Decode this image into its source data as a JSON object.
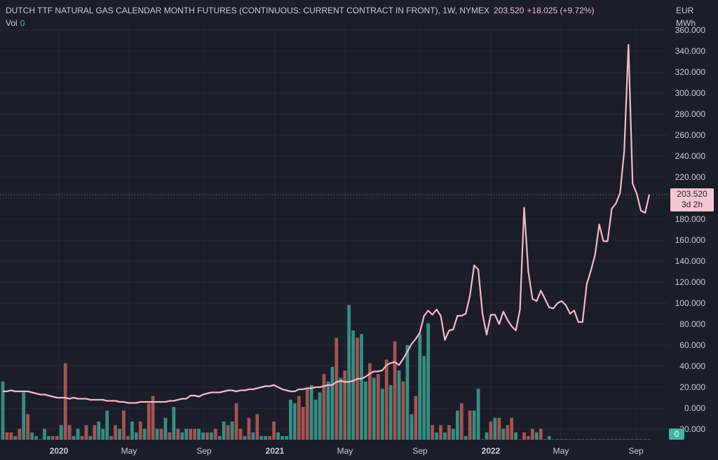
{
  "header": {
    "title": "DUTCH TTF NATURAL GAS CALENDAR MONTH FUTURES (CONTINUOUS: CURRENT CONTRACT IN FRONT), 1W, NYMEX",
    "price": "203.520",
    "change": "+18.025 (+9.72%)",
    "vol_label": "Vol",
    "vol_value": "0"
  },
  "axis": {
    "unit_line1": "EUR",
    "unit_line2": "MWh",
    "badge_price": "203.520",
    "badge_time": "3d 2h",
    "vol_badge": "0"
  },
  "colors": {
    "background": "#1b1d28",
    "line": "#f4b9cc",
    "vol_up": "#3fb5a3",
    "vol_down": "#d6675f"
  },
  "chart_data": {
    "type": "line",
    "title": "DUTCH TTF NATURAL GAS CALENDAR MONTH FUTURES (CONTINUOUS: CURRENT CONTRACT IN FRONT), 1W, NYMEX",
    "ylabel": "EUR MWh",
    "ylim": [
      -20,
      360
    ],
    "y_ticks": [
      "-20.000",
      "0.000",
      "20.000",
      "40.000",
      "60.000",
      "80.000",
      "100.000",
      "120.000",
      "140.000",
      "160.000",
      "180.000",
      "200.000",
      "220.000",
      "240.000",
      "260.000",
      "280.000",
      "300.000",
      "320.000",
      "340.000",
      "360.000"
    ],
    "x_ticks": [
      {
        "label": "2020",
        "bold": true
      },
      {
        "label": "May",
        "bold": false
      },
      {
        "label": "Sep",
        "bold": false
      },
      {
        "label": "2021",
        "bold": true
      },
      {
        "label": "May",
        "bold": false
      },
      {
        "label": "Sep",
        "bold": false
      },
      {
        "label": "2022",
        "bold": true
      },
      {
        "label": "May",
        "bold": false
      },
      {
        "label": "Sep",
        "bold": false
      }
    ],
    "last_price": 203.52,
    "series": [
      {
        "values": [
          16,
          16,
          17,
          16,
          16,
          16,
          16,
          15,
          14,
          13,
          13,
          12,
          11,
          10,
          10,
          10,
          9,
          10,
          9,
          9,
          9,
          8,
          8,
          8,
          8,
          7,
          7,
          7,
          6,
          6,
          5,
          5,
          5,
          6,
          6,
          6,
          6,
          6,
          6,
          6,
          7,
          7,
          8,
          9,
          9,
          12,
          12,
          11,
          13,
          14,
          15,
          15,
          15,
          16,
          17,
          17,
          16,
          17,
          17,
          18,
          18,
          19,
          20,
          21,
          21,
          22,
          20,
          18,
          17,
          16,
          16,
          18,
          18,
          19,
          19,
          20,
          20,
          21,
          22,
          22,
          25,
          26,
          25,
          25,
          26,
          28,
          28,
          30,
          33,
          35,
          35,
          36,
          41,
          43,
          44,
          41,
          47,
          54,
          61,
          66,
          72,
          88,
          93,
          89,
          94,
          88,
          65,
          74,
          75,
          88,
          88,
          90,
          107,
          136,
          132,
          90,
          70,
          89,
          89,
          80,
          92,
          84,
          78,
          74,
          94,
          191,
          130,
          104,
          102,
          112,
          104,
          96,
          95,
          100,
          102,
          98,
          90,
          93,
          82,
          82,
          118,
          131,
          146,
          175,
          159,
          159,
          190,
          195,
          205,
          245,
          346,
          214,
          204,
          188,
          186,
          203.5
        ]
      },
      {
        "name": "Vol",
        "values": [
          16,
          2,
          2,
          1,
          3,
          13,
          7,
          2,
          1,
          0,
          3,
          1,
          1,
          1,
          4,
          21,
          4,
          1,
          3,
          1,
          4,
          1,
          4,
          5,
          3,
          8,
          1,
          4,
          3,
          8,
          1,
          5,
          2,
          5,
          3,
          10,
          12,
          3,
          3,
          6,
          2,
          9,
          3,
          2,
          3,
          3,
          3,
          3,
          2,
          2,
          2,
          3,
          1,
          5,
          4,
          5,
          10,
          3,
          1,
          6,
          2,
          7,
          1,
          1,
          1,
          5,
          2,
          1,
          1,
          11,
          10,
          12,
          9,
          14,
          15,
          11,
          13,
          18,
          16,
          20,
          28,
          17,
          19,
          37,
          30,
          28,
          29,
          16,
          21,
          17,
          18,
          14,
          22,
          15,
          27,
          19,
          16,
          26,
          7,
          12,
          29,
          23,
          32,
          4,
          2,
          4,
          2,
          4,
          3,
          8,
          10,
          1,
          8,
          8,
          14,
          0,
          2,
          5,
          6,
          6,
          3,
          4,
          6,
          2,
          0,
          2,
          1,
          3,
          2,
          3,
          0,
          1,
          0,
          0,
          0,
          0,
          0,
          0,
          0,
          0,
          0,
          0,
          0,
          0,
          0,
          0,
          0,
          0,
          0,
          0,
          0,
          0,
          0,
          0,
          0,
          0
        ],
        "up": [
          1,
          0,
          0,
          1,
          0,
          1,
          0,
          1,
          1,
          1,
          1,
          1,
          0,
          0,
          1,
          0,
          0,
          1,
          1,
          0,
          0,
          1,
          0,
          1,
          1,
          1,
          0,
          0,
          1,
          0,
          0,
          1,
          1,
          0,
          1,
          0,
          0,
          1,
          0,
          1,
          0,
          1,
          0,
          1,
          1,
          0,
          0,
          1,
          1,
          0,
          1,
          0,
          1,
          1,
          0,
          1,
          0,
          0,
          1,
          0,
          1,
          0,
          1,
          1,
          0,
          0,
          1,
          1,
          1,
          1,
          1,
          0,
          0,
          0,
          1,
          1,
          1,
          0,
          1,
          1,
          0,
          1,
          0,
          1,
          1,
          0,
          1,
          1,
          0,
          1,
          0,
          1,
          0,
          1,
          0,
          1,
          0,
          1,
          1,
          0,
          1,
          1,
          1,
          0,
          1,
          0,
          1,
          0,
          1,
          1,
          0,
          1,
          0,
          1,
          1,
          0,
          1,
          0,
          1,
          0,
          1,
          0,
          0,
          1,
          1,
          0,
          0,
          0,
          1,
          0,
          1,
          1,
          0,
          1,
          1,
          0,
          1,
          1,
          0,
          1,
          1,
          0,
          1,
          1,
          0,
          1,
          1,
          1,
          0,
          1,
          1,
          0,
          1,
          1,
          0,
          1
        ]
      }
    ]
  }
}
